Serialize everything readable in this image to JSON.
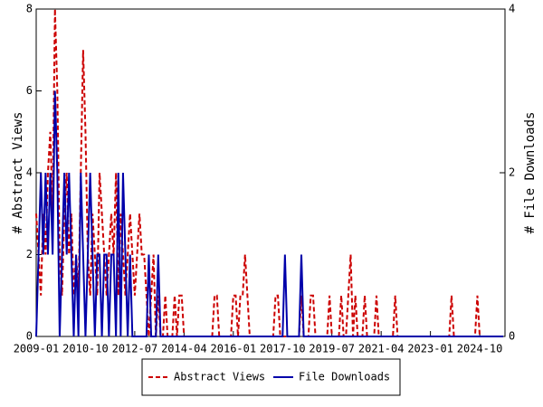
{
  "chart_data": {
    "type": "line",
    "x": [
      "2009-01",
      "2009-02",
      "2009-03",
      "2009-04",
      "2009-05",
      "2009-06",
      "2009-07",
      "2009-08",
      "2009-09",
      "2009-10",
      "2009-11",
      "2009-12",
      "2010-01",
      "2010-02",
      "2010-03",
      "2010-04",
      "2010-05",
      "2010-06",
      "2010-07",
      "2010-08",
      "2010-09",
      "2010-10",
      "2010-11",
      "2010-12",
      "2011-01",
      "2011-02",
      "2011-03",
      "2011-04",
      "2011-05",
      "2011-06",
      "2011-07",
      "2011-08",
      "2011-09",
      "2011-10",
      "2011-11",
      "2011-12",
      "2012-01",
      "2012-02",
      "2012-03",
      "2012-04",
      "2012-05",
      "2012-06",
      "2012-07",
      "2012-08",
      "2012-09",
      "2012-10",
      "2012-11",
      "2012-12",
      "2013-01",
      "2013-02",
      "2013-03",
      "2013-04",
      "2013-05",
      "2013-06",
      "2013-07",
      "2013-08",
      "2013-09",
      "2013-10",
      "2013-11",
      "2013-12",
      "2014-01",
      "2014-02",
      "2014-03",
      "2014-04",
      "2014-05",
      "2014-06",
      "2014-07",
      "2014-08",
      "2014-09",
      "2014-10",
      "2014-11",
      "2014-12",
      "2015-01",
      "2015-02",
      "2015-03",
      "2015-04",
      "2015-05",
      "2015-06",
      "2015-07",
      "2015-08",
      "2015-09",
      "2015-10",
      "2015-11",
      "2015-12",
      "2016-01",
      "2016-02",
      "2016-03",
      "2016-04",
      "2016-05",
      "2016-06",
      "2016-07",
      "2016-08",
      "2016-09",
      "2016-10",
      "2016-11",
      "2016-12",
      "2017-01",
      "2017-02",
      "2017-03",
      "2017-04",
      "2017-05",
      "2017-06",
      "2017-07",
      "2017-08",
      "2017-09",
      "2017-10",
      "2017-11",
      "2017-12",
      "2018-01",
      "2018-02",
      "2018-03",
      "2018-04",
      "2018-05",
      "2018-06",
      "2018-07",
      "2018-08",
      "2018-09",
      "2018-10",
      "2018-11",
      "2018-12",
      "2019-01",
      "2019-02",
      "2019-03",
      "2019-04",
      "2019-05",
      "2019-06",
      "2019-07",
      "2019-08",
      "2019-09",
      "2019-10",
      "2019-11",
      "2019-12",
      "2020-01",
      "2020-02",
      "2020-03",
      "2020-04",
      "2020-05",
      "2020-06",
      "2020-07",
      "2020-08",
      "2020-09",
      "2020-10",
      "2020-11",
      "2020-12",
      "2021-01",
      "2021-02",
      "2021-03",
      "2021-04",
      "2021-05",
      "2021-06",
      "2021-07",
      "2021-08",
      "2021-09",
      "2021-10",
      "2021-11",
      "2021-12",
      "2022-01",
      "2022-02",
      "2022-03",
      "2022-04",
      "2022-05",
      "2022-06",
      "2022-07",
      "2022-08",
      "2022-09",
      "2022-10",
      "2022-11",
      "2022-12",
      "2023-01",
      "2023-02",
      "2023-03",
      "2023-04",
      "2023-05",
      "2023-06",
      "2023-07",
      "2023-08",
      "2023-09",
      "2023-10",
      "2023-11",
      "2023-12",
      "2024-01",
      "2024-02",
      "2024-03",
      "2024-04",
      "2024-05",
      "2024-06",
      "2024-07",
      "2024-08",
      "2024-09",
      "2024-10",
      "2024-11",
      "2024-12",
      "2025-01",
      "2025-02",
      "2025-03",
      "2025-04",
      "2025-05",
      "2025-06",
      "2025-07",
      "2025-08"
    ],
    "xticks": [
      "2009-01",
      "2010-10",
      "2012-07",
      "2014-04",
      "2016-01",
      "2017-10",
      "2019-07",
      "2021-04",
      "2023-01",
      "2024-10"
    ],
    "ylabel": "# Abstract Views",
    "y2label": "# File Downloads",
    "ylim": [
      0,
      8
    ],
    "yticks": [
      0,
      2,
      4,
      6,
      8
    ],
    "y2lim": [
      0,
      4
    ],
    "y2ticks": [
      0,
      2,
      4
    ],
    "series": [
      {
        "name": "Abstract Views",
        "color": "#cc0000",
        "dashed": true,
        "values": [
          3,
          2,
          1,
          3,
          2,
          4,
          5,
          3,
          8,
          6,
          2,
          1,
          3,
          4,
          2,
          3,
          1,
          2,
          1,
          4,
          7,
          5,
          2,
          1,
          3,
          2,
          1,
          4,
          3,
          2,
          1,
          2,
          3,
          2,
          4,
          1,
          3,
          2,
          1,
          2,
          3,
          2,
          1,
          2,
          3,
          2,
          2,
          1,
          0,
          1,
          2,
          0,
          1,
          0,
          0,
          1,
          0,
          0,
          0,
          1,
          0,
          1,
          1,
          0,
          0,
          0,
          0,
          0,
          0,
          0,
          0,
          0,
          0,
          0,
          0,
          0,
          1,
          1,
          0,
          0,
          0,
          0,
          0,
          0,
          1,
          1,
          0,
          1,
          1,
          2,
          1,
          0,
          0,
          0,
          0,
          0,
          0,
          0,
          0,
          0,
          0,
          0,
          1,
          1,
          0,
          0,
          0,
          0,
          0,
          0,
          0,
          0,
          0,
          1,
          0,
          0,
          0,
          1,
          1,
          0,
          0,
          0,
          0,
          0,
          0,
          1,
          0,
          0,
          0,
          0,
          1,
          0,
          0,
          1,
          2,
          0,
          1,
          0,
          0,
          0,
          1,
          0,
          0,
          0,
          0,
          1,
          0,
          0,
          0,
          0,
          0,
          0,
          0,
          1,
          0,
          0,
          0,
          0,
          0,
          0,
          0,
          0,
          0,
          0,
          0,
          0,
          0,
          0,
          0,
          0,
          0,
          0,
          0,
          0,
          0,
          0,
          0,
          1,
          0,
          0,
          0,
          0,
          0,
          0,
          0,
          0,
          0,
          0,
          1,
          0,
          0,
          0,
          0,
          0,
          0,
          0,
          0,
          0,
          0,
          0
        ]
      },
      {
        "name": "File Downloads",
        "color": "#0000aa",
        "axis": "y2",
        "values": [
          0,
          1,
          2,
          1,
          2,
          1,
          2,
          1,
          3,
          2,
          0,
          1,
          2,
          1,
          2,
          1,
          0,
          1,
          0,
          2,
          1,
          0,
          1,
          2,
          1,
          0,
          1,
          1,
          0,
          1,
          1,
          0,
          1,
          1,
          0,
          2,
          0,
          2,
          1,
          0,
          1,
          0,
          0,
          0,
          0,
          0,
          0,
          0,
          1,
          0,
          0,
          0,
          1,
          0,
          0,
          0,
          0,
          0,
          0,
          0,
          0,
          0,
          0,
          0,
          0,
          0,
          0,
          0,
          0,
          0,
          0,
          0,
          0,
          0,
          0,
          0,
          0,
          0,
          0,
          0,
          0,
          0,
          0,
          0,
          0,
          0,
          0,
          0,
          0,
          0,
          0,
          0,
          0,
          0,
          0,
          0,
          0,
          0,
          0,
          0,
          0,
          0,
          0,
          0,
          0,
          0,
          1,
          0,
          0,
          0,
          0,
          0,
          0,
          1,
          0,
          0,
          0,
          0,
          0,
          0,
          0,
          0,
          0,
          0,
          0,
          0,
          0,
          0,
          0,
          0,
          0,
          0,
          0,
          0,
          0,
          0,
          0,
          0,
          0,
          0,
          0,
          0,
          0,
          0,
          0,
          0,
          0,
          0,
          0,
          0,
          0,
          0,
          0,
          0,
          0,
          0,
          0,
          0,
          0,
          0,
          0,
          0,
          0,
          0,
          0,
          0,
          0,
          0,
          0,
          0,
          0,
          0,
          0,
          0,
          0,
          0,
          0,
          0,
          0,
          0,
          0,
          0,
          0,
          0,
          0,
          0,
          0,
          0,
          0,
          0,
          0,
          0,
          0,
          0,
          0,
          0,
          0,
          0,
          0,
          0
        ]
      }
    ]
  }
}
